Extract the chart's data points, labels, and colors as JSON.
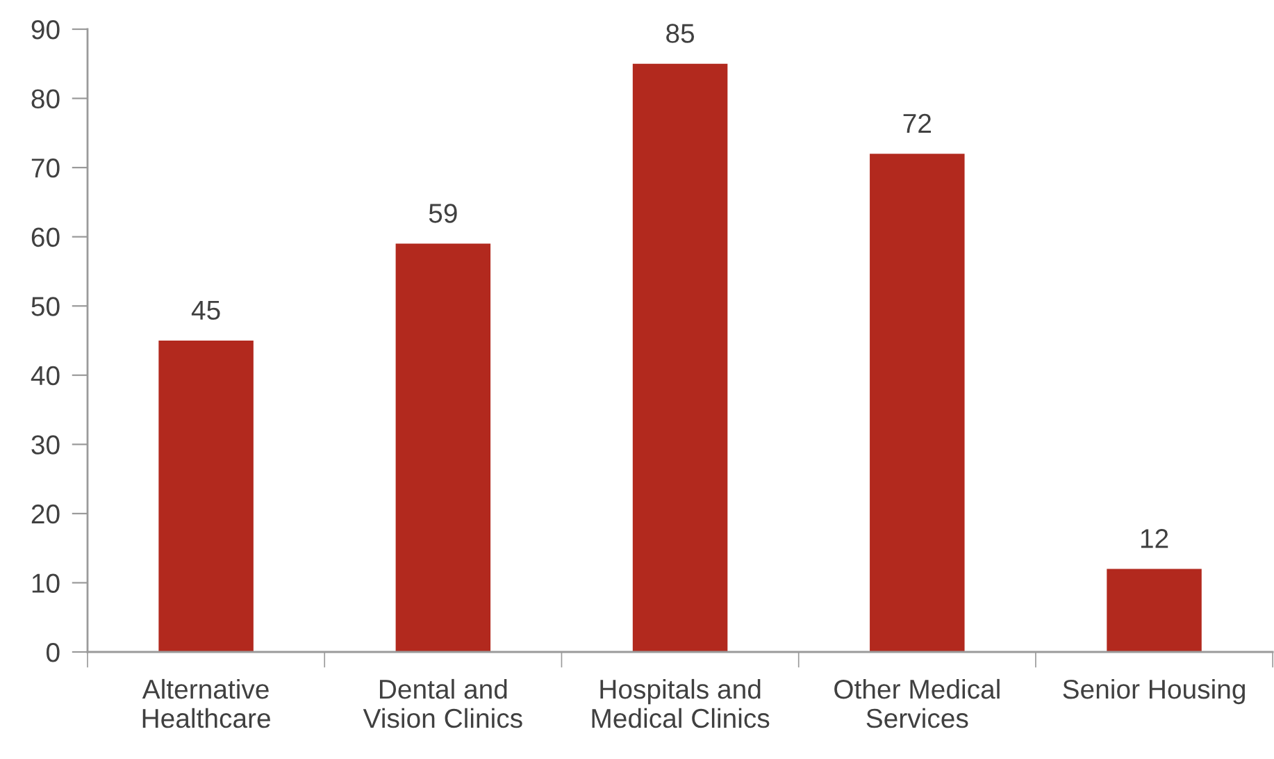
{
  "chart_data": {
    "type": "bar",
    "categories": [
      "Alternative\nHealthcare",
      "Dental and\nVision Clinics",
      "Hospitals and\nMedical Clinics",
      "Other Medical\nServices",
      "Senior Housing"
    ],
    "values": [
      45,
      59,
      85,
      72,
      12
    ],
    "color": "#b2291e",
    "ylim": [
      0,
      90
    ],
    "yticks": [
      0,
      10,
      20,
      30,
      40,
      50,
      60,
      70,
      80,
      90
    ],
    "data_labels": true,
    "grid": false,
    "legend": false
  }
}
